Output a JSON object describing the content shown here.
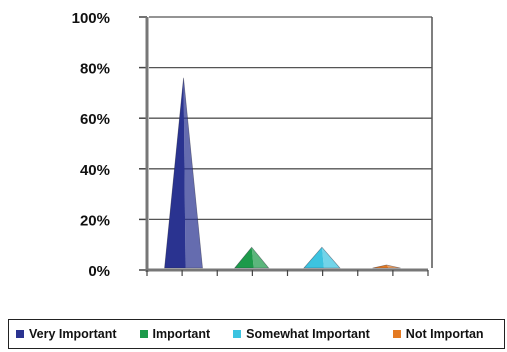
{
  "chart_data": {
    "type": "bar",
    "title": "",
    "xlabel": "",
    "ylabel": "",
    "categories": [
      "Very Important",
      "Important",
      "Somewhat Important",
      "Not Important"
    ],
    "values": [
      76,
      9,
      9,
      2
    ],
    "ylim": [
      0,
      100
    ],
    "yticks": [
      "0%",
      "20%",
      "40%",
      "60%",
      "80%",
      "100%"
    ],
    "grid": true,
    "legend": "bottom",
    "legend_labels": [
      "Very Important",
      "Important",
      "Somewhat Important",
      "Not Importan"
    ],
    "colors": {
      "Very Important": "#2a3390",
      "Important": "#1d9a4a",
      "Somewhat Important": "#3cc3e0",
      "Not Important": "#e47a22"
    }
  }
}
